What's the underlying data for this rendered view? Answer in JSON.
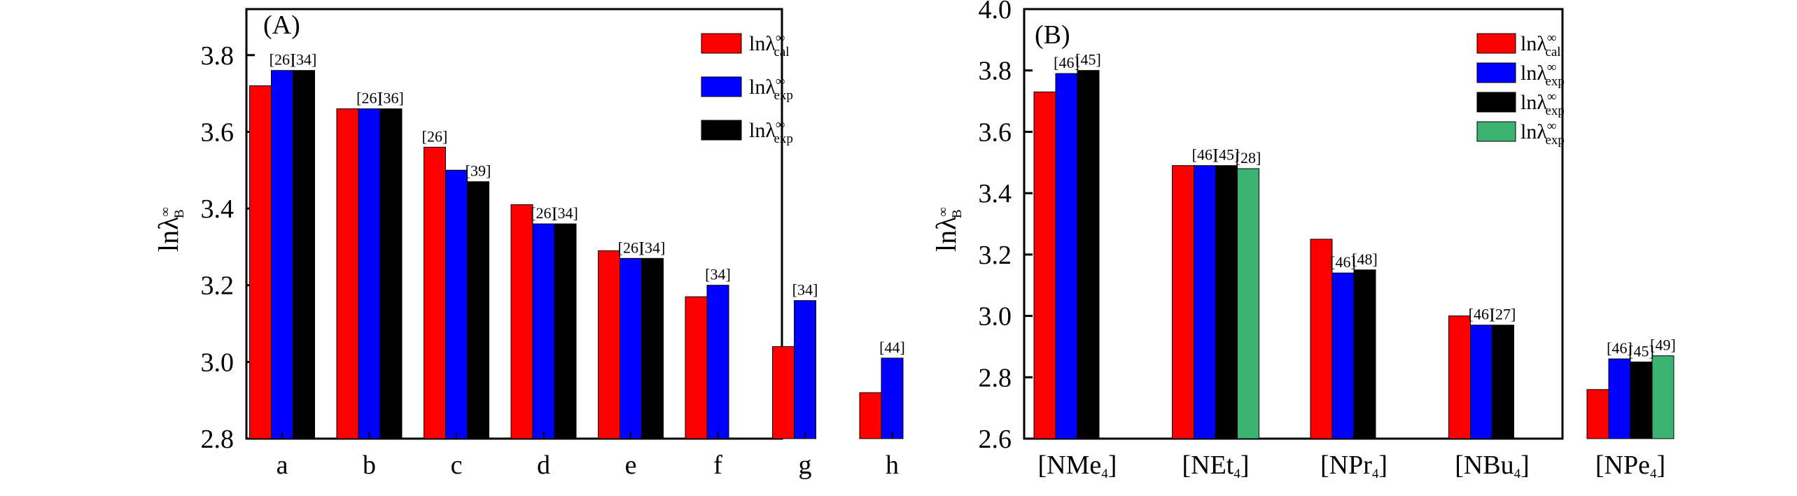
{
  "chart_data": [
    {
      "type": "bar",
      "panel_label": "(A)",
      "ylabel": {
        "base": "lnλ",
        "sup": "∞",
        "sub": "B"
      },
      "ylim": [
        2.8,
        3.92
      ],
      "yticks": [
        2.8,
        3.0,
        3.2,
        3.4,
        3.6,
        3.8
      ],
      "ytick_labels": [
        "2.8",
        "3.0",
        "3.2",
        "3.4",
        "3.6",
        "3.8"
      ],
      "categories": [
        "a",
        "b",
        "c",
        "d",
        "e",
        "f",
        "g",
        "h"
      ],
      "series": [
        {
          "name": "lnλ∞cal",
          "base": "lnλ",
          "sup": "∞",
          "sub": "cal",
          "color": "#ff0000",
          "values": [
            3.72,
            3.66,
            3.56,
            3.41,
            3.29,
            3.17,
            3.04,
            2.92
          ]
        },
        {
          "name": "lnλ∞exp",
          "base": "lnλ",
          "sup": "∞",
          "sub": "exp",
          "color": "#0000ff",
          "values": [
            3.76,
            3.66,
            3.5,
            3.36,
            3.27,
            3.2,
            3.16,
            3.01
          ]
        },
        {
          "name": "lnλ∞exp",
          "base": "lnλ",
          "sup": "∞",
          "sub": "exp",
          "color": "#000000",
          "values": [
            3.76,
            3.66,
            3.47,
            3.36,
            3.27,
            null,
            null,
            null
          ]
        }
      ],
      "annotations": [
        {
          "category": 0,
          "series": 1,
          "text": "[26]"
        },
        {
          "category": 0,
          "series": 2,
          "text": "[34]"
        },
        {
          "category": 1,
          "series": 1,
          "text": "[26]"
        },
        {
          "category": 1,
          "series": 2,
          "text": "[36]"
        },
        {
          "category": 2,
          "series": 0,
          "text": "[26]"
        },
        {
          "category": 2,
          "series": 2,
          "text": "[39]"
        },
        {
          "category": 3,
          "series": 1,
          "text": "[26]"
        },
        {
          "category": 3,
          "series": 2,
          "text": "[34]"
        },
        {
          "category": 4,
          "series": 1,
          "text": "[26]"
        },
        {
          "category": 4,
          "series": 2,
          "text": "[34]"
        },
        {
          "category": 5,
          "series": 1,
          "text": "[34]"
        },
        {
          "category": 6,
          "series": 1,
          "text": "[34]"
        },
        {
          "category": 7,
          "series": 1,
          "text": "[44]"
        }
      ],
      "legend_position": "top-right"
    },
    {
      "type": "bar",
      "panel_label": "(B)",
      "ylabel": {
        "base": "lnλ",
        "sup": "∞",
        "sub": "B"
      },
      "ylim": [
        2.6,
        4.0
      ],
      "yticks": [
        2.6,
        2.8,
        3.0,
        3.2,
        3.4,
        3.6,
        3.8,
        4.0
      ],
      "ytick_labels": [
        "2.6",
        "2.8",
        "3.0",
        "3.2",
        "3.4",
        "3.6",
        "3.8",
        "4.0"
      ],
      "categories": [
        "[NMe4]",
        "[NEt4]",
        "[NPr4]",
        "[NBu4]",
        "[NPe4]"
      ],
      "category_parts": [
        {
          "pre": "[NMe",
          "sub": "4",
          "post": "]"
        },
        {
          "pre": "[NEt",
          "sub": "4",
          "post": "]"
        },
        {
          "pre": "[NPr",
          "sub": "4",
          "post": "]"
        },
        {
          "pre": "[NBu",
          "sub": "4",
          "post": "]"
        },
        {
          "pre": "[NPe",
          "sub": "4",
          "post": "]"
        }
      ],
      "series": [
        {
          "name": "lnλ∞cal",
          "base": "lnλ",
          "sup": "∞",
          "sub": "cal",
          "color": "#ff0000",
          "values": [
            3.73,
            3.49,
            3.25,
            3.0,
            2.76
          ]
        },
        {
          "name": "lnλ∞exp",
          "base": "lnλ",
          "sup": "∞",
          "sub": "exp",
          "color": "#0000ff",
          "values": [
            3.79,
            3.49,
            3.14,
            2.97,
            2.86
          ]
        },
        {
          "name": "lnλ∞exp",
          "base": "lnλ",
          "sup": "∞",
          "sub": "exp",
          "color": "#000000",
          "values": [
            3.8,
            3.49,
            3.15,
            2.97,
            2.85
          ]
        },
        {
          "name": "lnλ∞exp",
          "base": "lnλ",
          "sup": "∞",
          "sub": "exp",
          "color": "#3cb371",
          "values": [
            null,
            3.48,
            null,
            null,
            2.87
          ]
        }
      ],
      "annotations": [
        {
          "category": 0,
          "series": 1,
          "text": "[46]"
        },
        {
          "category": 0,
          "series": 2,
          "text": "[45]"
        },
        {
          "category": 1,
          "series": 1,
          "text": "[46]"
        },
        {
          "category": 1,
          "series": 2,
          "text": "[45]"
        },
        {
          "category": 1,
          "series": 3,
          "text": "[28]"
        },
        {
          "category": 2,
          "series": 1,
          "text": "[46]"
        },
        {
          "category": 2,
          "series": 2,
          "text": "[48]"
        },
        {
          "category": 3,
          "series": 1,
          "text": "[46]"
        },
        {
          "category": 3,
          "series": 2,
          "text": "[27]"
        },
        {
          "category": 4,
          "series": 1,
          "text": "[46]"
        },
        {
          "category": 4,
          "series": 2,
          "text": "[45]"
        },
        {
          "category": 4,
          "series": 3,
          "text": "[49]"
        }
      ],
      "legend_position": "top-right"
    }
  ]
}
